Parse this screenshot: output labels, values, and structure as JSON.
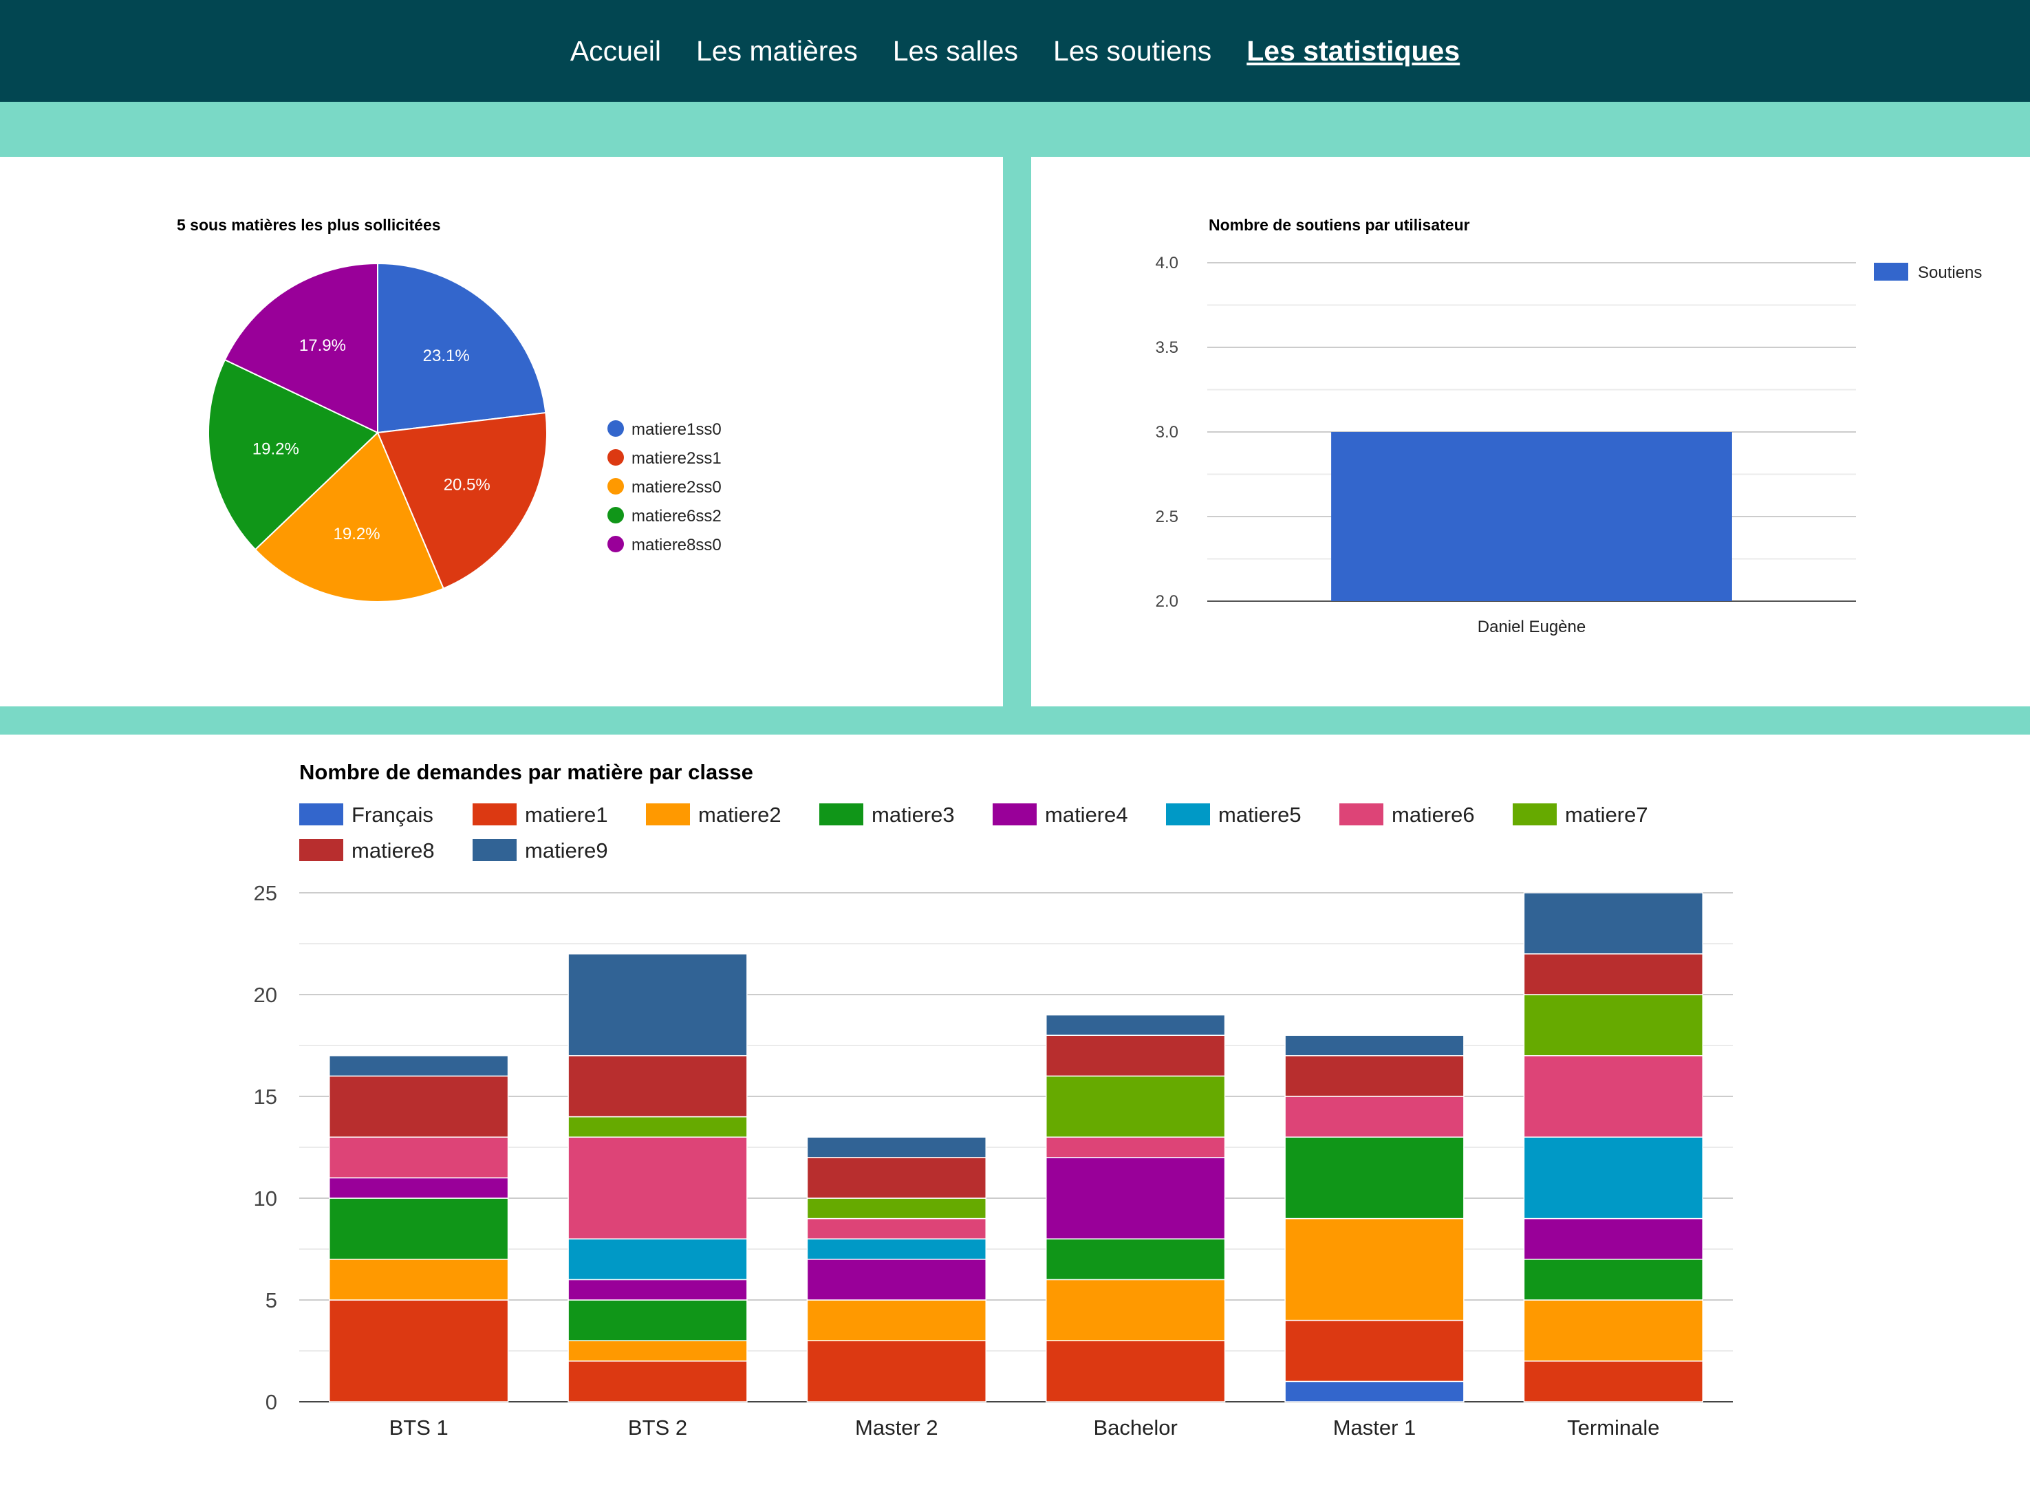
{
  "nav": {
    "items": [
      {
        "label": "Accueil",
        "active": false
      },
      {
        "label": "Les matières",
        "active": false
      },
      {
        "label": "Les salles",
        "active": false
      },
      {
        "label": "Les soutiens",
        "active": false
      },
      {
        "label": "Les statistiques",
        "active": true
      }
    ]
  },
  "chart_data": [
    {
      "type": "pie",
      "title": "5 sous matières les plus sollicitées",
      "legend_position": "right",
      "slices": [
        {
          "label": "matiere1ss0",
          "value": 23.1,
          "display": "23.1%",
          "color": "#3366cc"
        },
        {
          "label": "matiere2ss1",
          "value": 20.5,
          "display": "20.5%",
          "color": "#dc3912"
        },
        {
          "label": "matiere2ss0",
          "value": 19.2,
          "display": "19.2%",
          "color": "#ff9900"
        },
        {
          "label": "matiere6ss2",
          "value": 19.2,
          "display": "19.2%",
          "color": "#109618"
        },
        {
          "label": "matiere8ss0",
          "value": 17.9,
          "display": "17.9%",
          "color": "#990099"
        }
      ]
    },
    {
      "type": "bar",
      "title": "Nombre de soutiens par utilisateur",
      "legend_position": "right",
      "categories": [
        "Daniel Eugène"
      ],
      "series": [
        {
          "name": "Soutiens",
          "values": [
            3
          ],
          "color": "#3366cc"
        }
      ],
      "ylim": [
        2,
        4
      ],
      "yticks": [
        "2.0",
        "2.5",
        "3.0",
        "3.5",
        "4.0"
      ],
      "grid": true
    },
    {
      "type": "bar",
      "stacked": true,
      "title": "Nombre de demandes par matière par classe",
      "legend_position": "top",
      "categories": [
        "BTS 1",
        "BTS 2",
        "Master 2",
        "Bachelor",
        "Master 1",
        "Terminale"
      ],
      "ylim": [
        0,
        25
      ],
      "yticks": [
        "0",
        "5",
        "10",
        "15",
        "20",
        "25"
      ],
      "grid": true,
      "series": [
        {
          "name": "Français",
          "color": "#3366cc",
          "values": [
            0,
            0,
            0,
            0,
            1,
            0
          ]
        },
        {
          "name": "matiere1",
          "color": "#dc3912",
          "values": [
            5,
            2,
            3,
            3,
            3,
            2
          ]
        },
        {
          "name": "matiere2",
          "color": "#ff9900",
          "values": [
            2,
            1,
            2,
            3,
            5,
            3
          ]
        },
        {
          "name": "matiere3",
          "color": "#109618",
          "values": [
            3,
            2,
            0,
            2,
            4,
            2
          ]
        },
        {
          "name": "matiere4",
          "color": "#990099",
          "values": [
            1,
            1,
            2,
            4,
            0,
            2
          ]
        },
        {
          "name": "matiere5",
          "color": "#0099c6",
          "values": [
            0,
            2,
            1,
            0,
            0,
            4
          ]
        },
        {
          "name": "matiere6",
          "color": "#dd4477",
          "values": [
            2,
            5,
            1,
            1,
            2,
            4
          ]
        },
        {
          "name": "matiere7",
          "color": "#66aa00",
          "values": [
            0,
            1,
            1,
            3,
            0,
            3
          ]
        },
        {
          "name": "matiere8",
          "color": "#b82e2e",
          "values": [
            3,
            3,
            2,
            2,
            2,
            2
          ]
        },
        {
          "name": "matiere9",
          "color": "#316395",
          "values": [
            1,
            5,
            1,
            1,
            1,
            3
          ]
        }
      ]
    }
  ]
}
